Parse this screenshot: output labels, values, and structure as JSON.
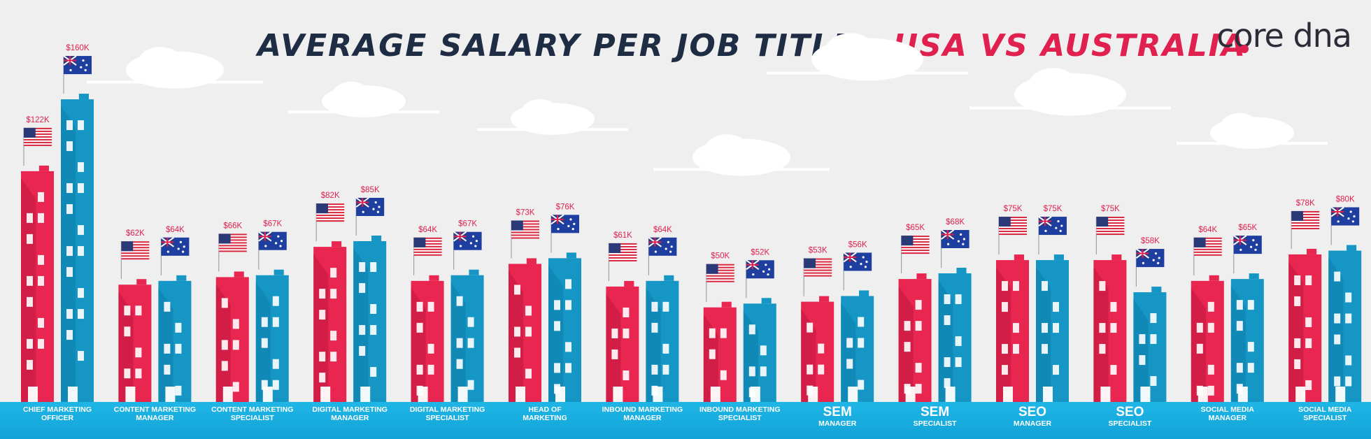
{
  "title": {
    "part1": "AVERAGE SALARY PER JOB TITLE :",
    "part2": "USA VS AUSTRALIA"
  },
  "logo": {
    "text": "core dna"
  },
  "colors": {
    "usa": "#e8264f",
    "australia": "#1596c4",
    "water": "#1aaee0",
    "title_dark": "#1f2d44",
    "label_red": "#e0204f"
  },
  "chart_data": {
    "type": "bar",
    "title": "AVERAGE SALARY PER JOB TITLE : USA VS AUSTRALIA",
    "categories": [
      "CHIEF MARKETING OFFICER",
      "CONTENT MARKETING MANAGER",
      "CONTENT MARKETING SPECIALIST",
      "DIGITAL MARKETING MANAGER",
      "DIGITAL MARKETING SPECIALIST",
      "HEAD OF MARKETING",
      "INBOUND MARKETING MANAGER",
      "INBOUND MARKETING SPECIALIST",
      "SEM MANAGER",
      "SEM SPECIALIST",
      "SEO MANAGER",
      "SEO SPECIALIST",
      "SOCIAL MEDIA MANAGER",
      "SOCIAL MEDIA SPECIALIST"
    ],
    "category_labels": [
      {
        "lines": [
          "CHIEF MARKETING",
          "OFFICER"
        ],
        "big": false
      },
      {
        "lines": [
          "CONTENT MARKETING",
          "MANAGER"
        ],
        "big": false
      },
      {
        "lines": [
          "CONTENT MARKETING",
          "SPECIALIST"
        ],
        "big": false
      },
      {
        "lines": [
          "DIGITAL MARKETING",
          "MANAGER"
        ],
        "big": false
      },
      {
        "lines": [
          "DIGITAL MARKETING",
          "SPECIALIST"
        ],
        "big": false
      },
      {
        "lines": [
          "HEAD OF",
          "MARKETING"
        ],
        "big": false
      },
      {
        "lines": [
          "INBOUND MARKETING",
          "MANAGER"
        ],
        "big": false
      },
      {
        "lines": [
          "INBOUND MARKETING",
          "SPECIALIST"
        ],
        "big": false
      },
      {
        "lines": [
          "SEM",
          "MANAGER"
        ],
        "big": true
      },
      {
        "lines": [
          "SEM",
          "SPECIALIST"
        ],
        "big": true
      },
      {
        "lines": [
          "SEO",
          "MANAGER"
        ],
        "big": true
      },
      {
        "lines": [
          "SEO",
          "SPECIALIST"
        ],
        "big": true
      },
      {
        "lines": [
          "SOCIAL MEDIA",
          "MANAGER"
        ],
        "big": false
      },
      {
        "lines": [
          "SOCIAL MEDIA",
          "SPECIALIST"
        ],
        "big": false
      }
    ],
    "series": [
      {
        "country": "USA",
        "values": [
          122,
          62,
          66,
          82,
          64,
          73,
          61,
          50,
          53,
          65,
          75,
          75,
          64,
          78
        ],
        "labels": [
          "$122K",
          "$62K",
          "$66K",
          "$82K",
          "$64K",
          "$73K",
          "$61K",
          "$50K",
          "$53K",
          "$65K",
          "$75K",
          "$75K",
          "$64K",
          "$78K"
        ]
      },
      {
        "country": "Australia",
        "values": [
          160,
          64,
          67,
          85,
          67,
          76,
          64,
          52,
          56,
          68,
          75,
          58,
          65,
          80
        ],
        "labels": [
          "$160K",
          "$64K",
          "$67K",
          "$85K",
          "$67K",
          "$76K",
          "$64K",
          "$52K",
          "$56K",
          "$68K",
          "$75K",
          "$58K",
          "$65K",
          "$80K"
        ]
      }
    ],
    "units": "thousand USD",
    "legend": "flags above each building",
    "grid": false
  }
}
